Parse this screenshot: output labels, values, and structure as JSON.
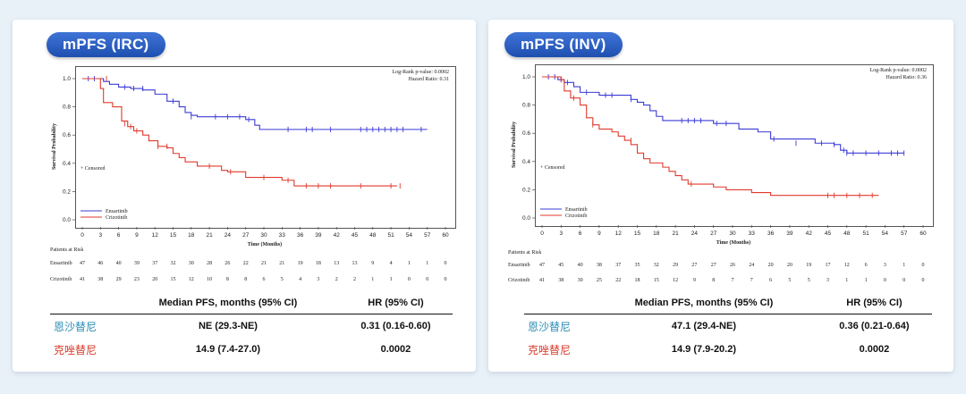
{
  "panels": [
    {
      "title": "mPFS (IRC)",
      "stats": {
        "pvalue_label": "Log-Rank p-value: 0.0002",
        "hr_label": "Hazard Ratio: 0.31"
      },
      "censored_label": "+ Censored",
      "legend": [
        "Ensartinib",
        "Crizotinib"
      ],
      "risk_title": "Patients at Risk",
      "risk": {
        "times": [
          0,
          3,
          6,
          9,
          12,
          15,
          18,
          21,
          24,
          27,
          30,
          33,
          36,
          39,
          42,
          45,
          48,
          51,
          54,
          57,
          60
        ],
        "Ensartinib": [
          47,
          46,
          40,
          39,
          37,
          32,
          30,
          28,
          26,
          22,
          21,
          21,
          19,
          18,
          13,
          13,
          9,
          4,
          1,
          1,
          0
        ],
        "Crizotinib": [
          41,
          38,
          29,
          23,
          20,
          15,
          12,
          10,
          8,
          8,
          6,
          5,
          4,
          3,
          2,
          2,
          1,
          1,
          0,
          0,
          0
        ]
      },
      "table": {
        "headers": [
          "",
          "Median PFS, months (95% CI)",
          "HR (95% CI)"
        ],
        "rows": [
          {
            "drug": "恩沙替尼",
            "median": "NE (29.3-NE)",
            "hr": "0.31 (0.16-0.60)"
          },
          {
            "drug": "克唑替尼",
            "median": "14.9 (7.4-27.0)",
            "hr": "0.0002"
          }
        ]
      }
    },
    {
      "title": "mPFS (INV)",
      "stats": {
        "pvalue_label": "Log-Rank p-value: 0.0002",
        "hr_label": "Hazard Ratio: 0.36"
      },
      "censored_label": "+ Censored",
      "legend": [
        "Ensartinib",
        "Crizotinib"
      ],
      "risk_title": "Patients at Risk",
      "risk": {
        "times": [
          0,
          3,
          6,
          9,
          12,
          15,
          18,
          21,
          24,
          27,
          30,
          33,
          36,
          39,
          42,
          45,
          48,
          51,
          54,
          57,
          60
        ],
        "Ensartinib": [
          47,
          45,
          40,
          38,
          37,
          35,
          32,
          29,
          27,
          27,
          26,
          24,
          20,
          20,
          19,
          17,
          12,
          6,
          3,
          1,
          0
        ],
        "Crizotinib": [
          41,
          38,
          30,
          25,
          22,
          18,
          15,
          12,
          9,
          8,
          7,
          7,
          6,
          5,
          5,
          3,
          1,
          1,
          0,
          0,
          0
        ]
      },
      "table": {
        "headers": [
          "",
          "Median PFS, months (95% CI)",
          "HR (95% CI)"
        ],
        "rows": [
          {
            "drug": "恩沙替尼",
            "median": "47.1 (29.4-NE)",
            "hr": "0.36 (0.21-0.64)"
          },
          {
            "drug": "克唑替尼",
            "median": "14.9 (7.9-20.2)",
            "hr": "0.0002"
          }
        ]
      }
    }
  ],
  "chart_data": [
    {
      "type": "line",
      "title": "mPFS (IRC)",
      "xlabel": "Time (Months)",
      "ylabel": "Survival Probability",
      "xlim": [
        0,
        60
      ],
      "ylim": [
        0,
        1.0
      ],
      "xticks": [
        0,
        3,
        6,
        9,
        12,
        15,
        18,
        21,
        24,
        27,
        30,
        33,
        36,
        39,
        42,
        45,
        48,
        51,
        54,
        57,
        60
      ],
      "yticks": [
        "0.0",
        "0.2",
        "0.4",
        "0.6",
        "0.8",
        "1.0"
      ],
      "series": [
        {
          "name": "Ensartinib",
          "color": "#3b3bd6",
          "steps": [
            [
              0,
              1.0
            ],
            [
              3.5,
              0.98
            ],
            [
              4.5,
              0.96
            ],
            [
              6,
              0.94
            ],
            [
              8,
              0.93
            ],
            [
              10,
              0.92
            ],
            [
              12,
              0.89
            ],
            [
              14,
              0.84
            ],
            [
              16,
              0.8
            ],
            [
              17,
              0.76
            ],
            [
              18,
              0.74
            ],
            [
              19,
              0.73
            ],
            [
              27,
              0.71
            ],
            [
              28.5,
              0.67
            ],
            [
              29.3,
              0.64
            ],
            [
              57,
              0.64
            ]
          ],
          "censors": [
            [
              1,
              1.0
            ],
            [
              2,
              1.0
            ],
            [
              7,
              0.94
            ],
            [
              8.5,
              0.93
            ],
            [
              10,
              0.93
            ],
            [
              15,
              0.84
            ],
            [
              18,
              0.73
            ],
            [
              22,
              0.73
            ],
            [
              24,
              0.73
            ],
            [
              26,
              0.73
            ],
            [
              27.5,
              0.71
            ],
            [
              34,
              0.64
            ],
            [
              37,
              0.64
            ],
            [
              38,
              0.64
            ],
            [
              41,
              0.64
            ],
            [
              46,
              0.64
            ],
            [
              47,
              0.64
            ],
            [
              48,
              0.64
            ],
            [
              49,
              0.64
            ],
            [
              50,
              0.64
            ],
            [
              51,
              0.64
            ],
            [
              52,
              0.64
            ],
            [
              53,
              0.64
            ],
            [
              56,
              0.64
            ]
          ]
        },
        {
          "name": "Crizotinib",
          "color": "#e03a2c",
          "steps": [
            [
              0,
              1.0
            ],
            [
              3,
              0.93
            ],
            [
              3.5,
              0.83
            ],
            [
              5,
              0.8
            ],
            [
              6.5,
              0.7
            ],
            [
              7.5,
              0.66
            ],
            [
              8.5,
              0.63
            ],
            [
              10,
              0.6
            ],
            [
              11,
              0.56
            ],
            [
              12.5,
              0.52
            ],
            [
              14,
              0.51
            ],
            [
              15,
              0.47
            ],
            [
              16,
              0.44
            ],
            [
              17,
              0.41
            ],
            [
              19,
              0.38
            ],
            [
              23,
              0.35
            ],
            [
              24,
              0.34
            ],
            [
              27,
              0.3
            ],
            [
              33,
              0.28
            ],
            [
              35,
              0.24
            ],
            [
              52,
              0.24
            ]
          ],
          "censors": [
            [
              4,
              1.0
            ],
            [
              7,
              0.68
            ],
            [
              8,
              0.66
            ],
            [
              9,
              0.63
            ],
            [
              12.5,
              0.52
            ],
            [
              14,
              0.52
            ],
            [
              21,
              0.38
            ],
            [
              24.5,
              0.34
            ],
            [
              30,
              0.3
            ],
            [
              34,
              0.28
            ],
            [
              37,
              0.24
            ],
            [
              39,
              0.24
            ],
            [
              41,
              0.24
            ],
            [
              46,
              0.24
            ],
            [
              51,
              0.24
            ],
            [
              52.5,
              0.24
            ]
          ]
        }
      ]
    },
    {
      "type": "line",
      "title": "mPFS (INV)",
      "xlabel": "Time (Months)",
      "ylabel": "Survival Probability",
      "xlim": [
        0,
        60
      ],
      "ylim": [
        0,
        1.0
      ],
      "xticks": [
        0,
        3,
        6,
        9,
        12,
        15,
        18,
        21,
        24,
        27,
        30,
        33,
        36,
        39,
        42,
        45,
        48,
        51,
        54,
        57,
        60
      ],
      "yticks": [
        "0.0",
        "0.2",
        "0.4",
        "0.6",
        "0.8",
        "1.0"
      ],
      "series": [
        {
          "name": "Ensartinib",
          "color": "#3b3bd6",
          "steps": [
            [
              0,
              1.0
            ],
            [
              2.5,
              0.98
            ],
            [
              3.5,
              0.96
            ],
            [
              5,
              0.93
            ],
            [
              6,
              0.89
            ],
            [
              9,
              0.87
            ],
            [
              12,
              0.87
            ],
            [
              14,
              0.84
            ],
            [
              15,
              0.82
            ],
            [
              16,
              0.8
            ],
            [
              17,
              0.76
            ],
            [
              18,
              0.72
            ],
            [
              19,
              0.69
            ],
            [
              27,
              0.67
            ],
            [
              31,
              0.63
            ],
            [
              34,
              0.61
            ],
            [
              36,
              0.56
            ],
            [
              43,
              0.53
            ],
            [
              46,
              0.52
            ],
            [
              47,
              0.48
            ],
            [
              48,
              0.46
            ],
            [
              57,
              0.46
            ]
          ],
          "censors": [
            [
              1,
              1.0
            ],
            [
              2,
              1.0
            ],
            [
              3,
              0.98
            ],
            [
              4,
              0.96
            ],
            [
              7,
              0.89
            ],
            [
              10,
              0.87
            ],
            [
              11,
              0.87
            ],
            [
              14,
              0.84
            ],
            [
              22,
              0.69
            ],
            [
              23,
              0.69
            ],
            [
              24,
              0.69
            ],
            [
              25,
              0.69
            ],
            [
              27.5,
              0.67
            ],
            [
              29,
              0.67
            ],
            [
              36.5,
              0.56
            ],
            [
              40,
              0.53
            ],
            [
              44,
              0.53
            ],
            [
              46,
              0.52
            ],
            [
              47.5,
              0.48
            ],
            [
              48,
              0.46
            ],
            [
              49,
              0.46
            ],
            [
              51,
              0.46
            ],
            [
              53,
              0.46
            ],
            [
              55,
              0.46
            ],
            [
              56,
              0.46
            ],
            [
              57,
              0.46
            ]
          ]
        },
        {
          "name": "Crizotinib",
          "color": "#e03a2c",
          "steps": [
            [
              0,
              1.0
            ],
            [
              3,
              0.98
            ],
            [
              3.5,
              0.9
            ],
            [
              4.5,
              0.85
            ],
            [
              6,
              0.8
            ],
            [
              7,
              0.71
            ],
            [
              8,
              0.66
            ],
            [
              9,
              0.63
            ],
            [
              11,
              0.61
            ],
            [
              12,
              0.58
            ],
            [
              13,
              0.55
            ],
            [
              14,
              0.52
            ],
            [
              15,
              0.46
            ],
            [
              16,
              0.42
            ],
            [
              17,
              0.39
            ],
            [
              19,
              0.36
            ],
            [
              20,
              0.33
            ],
            [
              21,
              0.3
            ],
            [
              22,
              0.27
            ],
            [
              23,
              0.24
            ],
            [
              27,
              0.22
            ],
            [
              29,
              0.2
            ],
            [
              33,
              0.18
            ],
            [
              36,
              0.16
            ],
            [
              53,
              0.16
            ]
          ],
          "censors": [
            [
              3,
              0.98
            ],
            [
              5,
              0.85
            ],
            [
              8,
              0.66
            ],
            [
              14,
              0.55
            ],
            [
              23.5,
              0.24
            ],
            [
              45,
              0.16
            ],
            [
              46,
              0.16
            ],
            [
              48,
              0.16
            ],
            [
              50,
              0.16
            ],
            [
              52,
              0.16
            ]
          ]
        }
      ]
    }
  ]
}
